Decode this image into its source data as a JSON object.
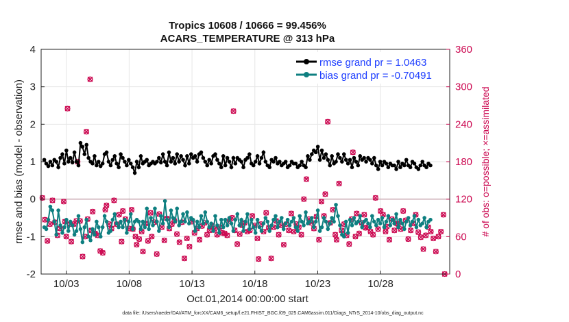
{
  "chart_data": {
    "type": "line",
    "title": "Tropics 10608 / 10666 = 99.456%",
    "subtitle": "ACARS_TEMPERATURE @ 313 hPa",
    "xlabel": "Oct.01,2014 00:00:00 start",
    "ylabel": "rmse and bias (model - observation)",
    "y2label": "# of obs: o=possible; ×=assimilated",
    "xlim": [
      1,
      33.5
    ],
    "ylim": [
      -2,
      4
    ],
    "y2lim": [
      0,
      360
    ],
    "xticks": [
      3,
      8,
      13,
      18,
      23,
      28
    ],
    "xtick_labels": [
      "10/03",
      "10/08",
      "10/13",
      "10/18",
      "10/23",
      "10/28"
    ],
    "yticks": [
      -2,
      -1,
      0,
      1,
      2,
      3,
      4
    ],
    "y2ticks": [
      0,
      60,
      120,
      180,
      240,
      300,
      360
    ],
    "footer": "data file: /Users/raeder/DAI/ATM_forcXX/CAM6_setup/f.e21.FHIST_BGC.f09_025.CAM6assim.011/Diags_NTrS_2014-10/obs_diag_output.nc",
    "zero_line": true,
    "legend_position": "top-right",
    "series": [
      {
        "name": "rmse grand pr = 1.0463",
        "color": "#000000",
        "axis": "left",
        "values": [
          1.05,
          0.95,
          0.88,
          1.0,
          0.9,
          1.05,
          1.0,
          0.85,
          1.1,
          1.2,
          0.95,
          1.3,
          1.0,
          1.1,
          0.98,
          1.25,
          1.0,
          0.9,
          1.5,
          1.4,
          1.2,
          1.45,
          1.1,
          1.0,
          0.95,
          1.15,
          0.9,
          1.0,
          0.88,
          0.95,
          1.2,
          1.25,
          1.0,
          0.9,
          1.05,
          1.15,
          0.95,
          0.85,
          1.2,
          1.1,
          1.0,
          0.9,
          1.05,
          0.95,
          0.85,
          0.7,
          1.0,
          0.85,
          1.15,
          0.95,
          1.0,
          1.05,
          0.9,
          0.95,
          1.0,
          0.95,
          1.0,
          1.1,
          0.98,
          1.2,
          1.0,
          0.9,
          1.25,
          1.0,
          1.1,
          0.95,
          1.2,
          1.0,
          1.15,
          1.05,
          0.9,
          1.15,
          0.95,
          1.2,
          1.1,
          1.15,
          1.0,
          1.2,
          1.25,
          1.1,
          1.0,
          0.9,
          1.05,
          0.95,
          1.15,
          1.2,
          1.05,
          0.95,
          0.85,
          1.15,
          0.9,
          1.1,
          1.0,
          0.85,
          1.1,
          0.95,
          1.1,
          1.05,
          1.0,
          0.85,
          1.05,
          1.1,
          1.2,
          0.95,
          0.9,
          1.0,
          1.15,
          0.95,
          1.1,
          1.25,
          1.0,
          0.9,
          0.85,
          1.05,
          1.0,
          1.1,
          0.95,
          1.0,
          0.9,
          0.95,
          1.0,
          0.85,
          0.9,
          1.0,
          0.95,
          0.95,
          0.85,
          0.9,
          1.0,
          0.9,
          0.85,
          1.15,
          1.05,
          1.2,
          1.3,
          1.25,
          1.4,
          1.05,
          1.3,
          1.1,
          1.2,
          1.05,
          0.9,
          1.15,
          0.95,
          1.0,
          1.2,
          1.1,
          1.0,
          1.2,
          1.05,
          0.95,
          1.05,
          0.85,
          1.1,
          1.0,
          0.9,
          1.15,
          1.05,
          1.1,
          1.0,
          1.1,
          1.05,
          0.95,
          1.1,
          0.9,
          0.8,
          1.0,
          0.9,
          1.0,
          0.95,
          0.85,
          0.95,
          0.9,
          0.9,
          0.8,
          1.0,
          0.85,
          0.95,
          0.9,
          1.05,
          0.9,
          0.85,
          1.0,
          0.95,
          0.85,
          0.8,
          0.9,
          1.0,
          0.9,
          0.85,
          0.95,
          0.9
        ],
        "x_start": 1.25,
        "x_step": 0.16
      },
      {
        "name": "bias grand pr = -0.70491",
        "color": "#0e7f80",
        "axis": "left",
        "values": [
          -0.75,
          -0.8,
          -0.55,
          -0.2,
          -0.3,
          -0.6,
          -0.95,
          -0.3,
          -0.7,
          -0.9,
          -0.75,
          -0.55,
          -0.85,
          -0.6,
          -0.7,
          -0.95,
          -0.85,
          -0.45,
          -0.8,
          -1.15,
          -0.75,
          -0.55,
          -1.0,
          -1.1,
          -0.8,
          -0.95,
          -0.6,
          -0.75,
          -1.0,
          -0.75,
          -0.45,
          -0.6,
          -0.9,
          -0.85,
          -0.55,
          -0.4,
          -0.65,
          -0.75,
          -0.6,
          -0.75,
          -0.55,
          -0.9,
          -0.6,
          -0.4,
          -0.8,
          -0.6,
          -0.55,
          -0.6,
          -0.8,
          -0.6,
          -0.75,
          -0.25,
          -0.8,
          -0.5,
          -0.7,
          -0.25,
          -0.6,
          -0.85,
          -0.45,
          -0.65,
          -0.05,
          -0.55,
          -0.75,
          -0.3,
          -0.5,
          -0.6,
          -0.25,
          -0.7,
          -0.6,
          -0.4,
          -0.6,
          -0.35,
          -0.65,
          -0.5,
          -0.55,
          -0.85,
          -0.6,
          -0.75,
          -0.45,
          -0.65,
          -0.35,
          -0.6,
          -0.75,
          -0.65,
          -0.85,
          -0.45,
          -0.7,
          -0.9,
          -0.55,
          -0.75,
          -0.55,
          -0.7,
          -0.5,
          -0.65,
          -0.85,
          -0.55,
          -0.4,
          -0.7,
          -0.55,
          -0.85,
          -0.6,
          -0.4,
          -0.8,
          -0.55,
          -0.75,
          -0.9,
          -0.55,
          -0.75,
          -0.85,
          -0.65,
          -0.5,
          -0.6,
          -0.85,
          -0.7,
          -0.55,
          -0.45,
          -0.75,
          -0.6,
          -0.5,
          -0.8,
          -0.65,
          -0.55,
          -0.7,
          -0.6,
          -0.5,
          -0.75,
          -0.85,
          -0.45,
          -0.6,
          -0.7,
          -0.35,
          -0.65,
          -0.6,
          -0.5,
          -0.75,
          -0.6,
          -0.3,
          -0.85,
          -0.75,
          -0.5,
          -0.6,
          -0.8,
          -0.65,
          -0.5,
          -0.6,
          -0.15,
          -0.45,
          -0.7,
          -0.95,
          -1.0,
          -0.6,
          -0.9,
          -0.55,
          -0.7,
          -0.5,
          -0.65,
          -0.6,
          -0.45,
          -0.75,
          -0.6,
          -0.55,
          -0.65,
          -0.75,
          -0.45,
          -0.6,
          -0.7,
          -0.55,
          -0.65,
          -0.5,
          -0.75,
          -0.6,
          -0.45,
          -0.7,
          -0.55,
          -0.65,
          -0.4,
          -0.75,
          -0.55,
          -0.65,
          -0.8,
          -0.6,
          -0.5,
          -0.7,
          -0.6,
          -0.45,
          -0.75,
          -0.55,
          -0.7,
          -0.65,
          -0.5,
          -0.75,
          -0.6,
          -0.55
        ],
        "x_start": 1.25,
        "x_step": 0.16
      }
    ],
    "obs_counts": {
      "name": "# of obs",
      "color": "#cc0a52",
      "axis": "right",
      "points": [
        [
          1.1,
          122
        ],
        [
          1.3,
          87
        ],
        [
          1.5,
          53
        ],
        [
          1.7,
          80
        ],
        [
          1.9,
          118
        ],
        [
          2.1,
          83
        ],
        [
          2.3,
          62
        ],
        [
          2.5,
          73
        ],
        [
          2.8,
          116
        ],
        [
          2.9,
          84
        ],
        [
          3.0,
          60
        ],
        [
          3.1,
          265
        ],
        [
          3.3,
          80
        ],
        [
          3.4,
          52
        ],
        [
          3.6,
          80
        ],
        [
          3.8,
          85
        ],
        [
          3.9,
          180
        ],
        [
          4.1,
          85
        ],
        [
          4.3,
          28
        ],
        [
          4.5,
          60
        ],
        [
          4.6,
          228
        ],
        [
          4.7,
          88
        ],
        [
          4.9,
          312
        ],
        [
          5.0,
          70
        ],
        [
          5.1,
          100
        ],
        [
          5.3,
          65
        ],
        [
          5.5,
          62
        ],
        [
          5.7,
          37
        ],
        [
          5.9,
          34
        ],
        [
          6.1,
          103
        ],
        [
          6.2,
          110
        ],
        [
          6.4,
          80
        ],
        [
          6.6,
          73
        ],
        [
          6.8,
          118
        ],
        [
          7.0,
          80
        ],
        [
          7.2,
          95
        ],
        [
          7.4,
          52
        ],
        [
          7.5,
          101
        ],
        [
          7.7,
          88
        ],
        [
          8.0,
          73
        ],
        [
          8.2,
          103
        ],
        [
          8.3,
          72
        ],
        [
          8.5,
          60
        ],
        [
          8.6,
          47
        ],
        [
          8.8,
          56
        ],
        [
          9.0,
          68
        ],
        [
          9.1,
          36
        ],
        [
          9.3,
          81
        ],
        [
          9.5,
          53
        ],
        [
          9.7,
          98
        ],
        [
          9.8,
          60
        ],
        [
          10.0,
          83
        ],
        [
          10.2,
          32
        ],
        [
          10.4,
          96
        ],
        [
          10.6,
          75
        ],
        [
          10.8,
          54
        ],
        [
          11.0,
          89
        ],
        [
          11.2,
          73
        ],
        [
          11.4,
          80
        ],
        [
          11.6,
          85
        ],
        [
          11.8,
          64
        ],
        [
          12.0,
          51
        ],
        [
          12.2,
          83
        ],
        [
          12.4,
          25
        ],
        [
          12.6,
          57
        ],
        [
          12.8,
          44
        ],
        [
          13.0,
          84
        ],
        [
          13.2,
          66
        ],
        [
          13.4,
          73
        ],
        [
          13.6,
          55
        ],
        [
          13.8,
          77
        ],
        [
          14.0,
          82
        ],
        [
          14.2,
          63
        ],
        [
          14.4,
          70
        ],
        [
          14.6,
          78
        ],
        [
          14.8,
          72
        ],
        [
          15.0,
          63
        ],
        [
          15.2,
          75
        ],
        [
          15.4,
          66
        ],
        [
          15.6,
          65
        ],
        [
          15.8,
          62
        ],
        [
          16.0,
          85
        ],
        [
          16.2,
          90
        ],
        [
          16.3,
          261
        ],
        [
          16.4,
          70
        ],
        [
          16.6,
          48
        ],
        [
          16.8,
          64
        ],
        [
          17.0,
          78
        ],
        [
          17.2,
          82
        ],
        [
          17.4,
          68
        ],
        [
          17.6,
          70
        ],
        [
          17.8,
          93
        ],
        [
          18.0,
          78
        ],
        [
          18.2,
          57
        ],
        [
          18.3,
          24
        ],
        [
          18.5,
          80
        ],
        [
          18.7,
          68
        ],
        [
          18.9,
          98
        ],
        [
          19.1,
          74
        ],
        [
          19.3,
          25
        ],
        [
          19.5,
          75
        ],
        [
          19.7,
          85
        ],
        [
          19.9,
          63
        ],
        [
          20.1,
          78
        ],
        [
          20.3,
          47
        ],
        [
          20.5,
          80
        ],
        [
          20.7,
          70
        ],
        [
          20.9,
          97
        ],
        [
          21.1,
          68
        ],
        [
          21.3,
          80
        ],
        [
          21.5,
          75
        ],
        [
          21.7,
          63
        ],
        [
          21.9,
          120
        ],
        [
          22.1,
          152
        ],
        [
          22.3,
          88
        ],
        [
          22.5,
          82
        ],
        [
          22.7,
          73
        ],
        [
          22.9,
          92
        ],
        [
          23.1,
          55
        ],
        [
          23.3,
          116
        ],
        [
          23.5,
          93
        ],
        [
          23.6,
          128
        ],
        [
          23.8,
          244
        ],
        [
          24.0,
          82
        ],
        [
          24.2,
          103
        ],
        [
          24.4,
          63
        ],
        [
          24.5,
          55
        ],
        [
          24.7,
          145
        ],
        [
          24.9,
          70
        ],
        [
          25.1,
          80
        ],
        [
          25.3,
          62
        ],
        [
          25.5,
          48
        ],
        [
          25.7,
          88
        ],
        [
          25.8,
          195
        ],
        [
          26.0,
          60
        ],
        [
          26.1,
          97
        ],
        [
          26.3,
          65
        ],
        [
          26.5,
          82
        ],
        [
          26.7,
          95
        ],
        [
          26.8,
          74
        ],
        [
          27.0,
          75
        ],
        [
          27.2,
          68
        ],
        [
          27.4,
          63
        ],
        [
          27.6,
          122
        ],
        [
          27.8,
          72
        ],
        [
          28.0,
          101
        ],
        [
          28.2,
          95
        ],
        [
          28.4,
          68
        ],
        [
          28.5,
          76
        ],
        [
          28.7,
          55
        ],
        [
          28.9,
          88
        ],
        [
          29.1,
          70
        ],
        [
          29.3,
          81
        ],
        [
          29.4,
          80
        ],
        [
          29.6,
          72
        ],
        [
          29.8,
          101
        ],
        [
          30.0,
          86
        ],
        [
          30.2,
          56
        ],
        [
          30.4,
          70
        ],
        [
          30.6,
          81
        ],
        [
          30.8,
          95
        ],
        [
          31.0,
          67
        ],
        [
          31.2,
          59
        ],
        [
          31.4,
          40
        ],
        [
          31.6,
          62
        ],
        [
          31.8,
          75
        ],
        [
          32.0,
          68
        ],
        [
          32.2,
          57
        ],
        [
          32.4,
          36
        ],
        [
          32.6,
          60
        ],
        [
          32.8,
          68
        ],
        [
          33.0,
          95
        ],
        [
          33.1,
          0
        ]
      ]
    }
  }
}
